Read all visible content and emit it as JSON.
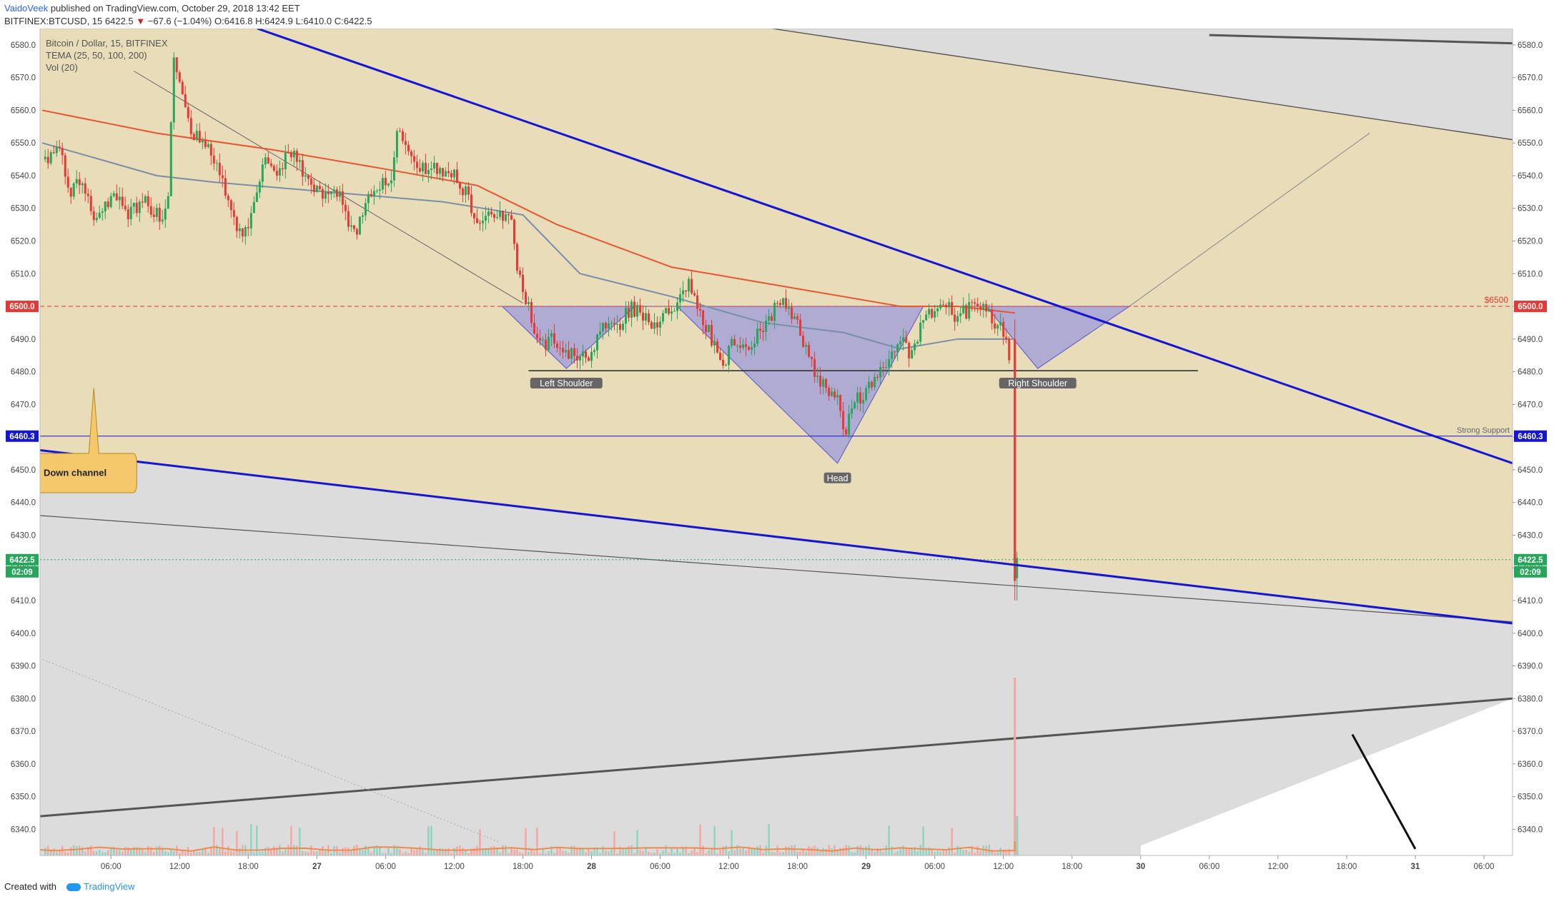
{
  "header": {
    "author": "VaidoVeek",
    "published": "published on TradingView.com, October 29, 2018 13:42 EET",
    "symbol": "BITFINEX:BTCUSD, 15",
    "last": "6422.5",
    "change_arrow": "▼",
    "change": "−67.6 (−1.04%)",
    "ohlc": "O:6416.8 H:6424.9 L:6410.0 C:6422.5"
  },
  "legend": {
    "line1": "Bitcoin / Dollar, 15, BITFINEX",
    "line2": "TEMA (25, 50, 100, 200)",
    "line3": "Vol (20)"
  },
  "footer": {
    "created_with": "Created with",
    "brand": "TradingView"
  },
  "chart_data": {
    "type": "candlestick",
    "symbol": "BITFINEX:BTCUSD",
    "interval": "15",
    "colors": {
      "up": "#26a65b",
      "down": "#e53935",
      "channel_line": "#1515d6",
      "tema_slow": "#e8552f",
      "tema_mid": "#7a8ea8"
    },
    "y_ticks": [
      6340,
      6350,
      6360,
      6370,
      6380,
      6390,
      6400,
      6410,
      6420,
      6430,
      6440,
      6450,
      6460,
      6470,
      6480,
      6490,
      6500,
      6510,
      6520,
      6530,
      6540,
      6550,
      6560,
      6570,
      6580
    ],
    "ylim": [
      6332,
      6585
    ],
    "x_ticks": [
      "06:00",
      "12:00",
      "18:00",
      "27",
      "06:00",
      "12:00",
      "18:00",
      "28",
      "06:00",
      "12:00",
      "18:00",
      "29",
      "06:00",
      "12:00",
      "18:00",
      "30",
      "06:00",
      "12:00",
      "18:00",
      "31",
      "06:00"
    ],
    "x_tick_hours": [
      6,
      12,
      18,
      24,
      30,
      36,
      42,
      48,
      54,
      60,
      66,
      72,
      78,
      84,
      90,
      96,
      102,
      108,
      114,
      120,
      126
    ],
    "xlim_hours": [
      -0.2,
      128.5
    ],
    "price_path": [
      [
        0.5,
        6545
      ],
      [
        1.5,
        6548
      ],
      [
        2.5,
        6535
      ],
      [
        3.5,
        6540
      ],
      [
        4.5,
        6525
      ],
      [
        5.5,
        6530
      ],
      [
        6.5,
        6534
      ],
      [
        7.5,
        6528
      ],
      [
        9,
        6532
      ],
      [
        10.5,
        6527
      ],
      [
        11,
        6535
      ],
      [
        11.5,
        6578
      ],
      [
        12.3,
        6562
      ],
      [
        13,
        6552
      ],
      [
        14.5,
        6550
      ],
      [
        15.5,
        6540
      ],
      [
        16.5,
        6530
      ],
      [
        17.5,
        6520
      ],
      [
        18.5,
        6530
      ],
      [
        19.5,
        6545
      ],
      [
        20.5,
        6540
      ],
      [
        21.5,
        6548
      ],
      [
        22.5,
        6543
      ],
      [
        23.5,
        6535
      ],
      [
        24.5,
        6535
      ],
      [
        25.5,
        6538
      ],
      [
        26.5,
        6528
      ],
      [
        27.5,
        6522
      ],
      [
        28.5,
        6535
      ],
      [
        29.5,
        6538
      ],
      [
        30.5,
        6540
      ],
      [
        31,
        6555
      ],
      [
        32,
        6546
      ],
      [
        33,
        6541
      ],
      [
        34,
        6543
      ],
      [
        35,
        6542
      ],
      [
        36,
        6540
      ],
      [
        37,
        6535
      ],
      [
        38,
        6527
      ],
      [
        39,
        6527
      ],
      [
        40,
        6528
      ],
      [
        41,
        6525
      ],
      [
        41.5,
        6512
      ],
      [
        42.5,
        6500
      ],
      [
        43.5,
        6488
      ],
      [
        44.5,
        6490
      ],
      [
        45.5,
        6484
      ],
      [
        46.5,
        6486
      ],
      [
        47.5,
        6483
      ],
      [
        48.5,
        6490
      ],
      [
        49.5,
        6496
      ],
      [
        50.5,
        6495
      ],
      [
        51.5,
        6500
      ],
      [
        52.5,
        6496
      ],
      [
        53.5,
        6495
      ],
      [
        54.5,
        6498
      ],
      [
        55.5,
        6500
      ],
      [
        56.5,
        6508
      ],
      [
        57.5,
        6498
      ],
      [
        58.5,
        6490
      ],
      [
        59.5,
        6482
      ],
      [
        60.5,
        6490
      ],
      [
        61.5,
        6487
      ],
      [
        62.5,
        6492
      ],
      [
        63.5,
        6496
      ],
      [
        64.5,
        6502
      ],
      [
        65.5,
        6497
      ],
      [
        66.5,
        6490
      ],
      [
        67.5,
        6480
      ],
      [
        68.5,
        6475
      ],
      [
        69.5,
        6473
      ],
      [
        70,
        6460
      ],
      [
        71,
        6470
      ],
      [
        72,
        6475
      ],
      [
        73,
        6477
      ],
      [
        74,
        6485
      ],
      [
        75,
        6490
      ],
      [
        76,
        6485
      ],
      [
        77,
        6496
      ],
      [
        78,
        6500
      ],
      [
        79,
        6500
      ],
      [
        80,
        6497
      ],
      [
        81,
        6499
      ],
      [
        82,
        6499
      ],
      [
        83,
        6496
      ],
      [
        84,
        6493
      ],
      [
        84.7,
        6480
      ],
      [
        85,
        6420
      ],
      [
        85.4,
        6423
      ]
    ],
    "tema_slow": [
      [
        0,
        6560
      ],
      [
        10,
        6553
      ],
      [
        20,
        6548
      ],
      [
        30,
        6542
      ],
      [
        38,
        6537
      ],
      [
        45,
        6525
      ],
      [
        55,
        6512
      ],
      [
        65,
        6506
      ],
      [
        75,
        6500
      ],
      [
        80,
        6500
      ],
      [
        85,
        6498
      ]
    ],
    "tema_mid": [
      [
        0,
        6550
      ],
      [
        10,
        6540
      ],
      [
        15,
        6538
      ],
      [
        25,
        6535
      ],
      [
        35,
        6532
      ],
      [
        42,
        6528
      ],
      [
        47,
        6510
      ],
      [
        55,
        6503
      ],
      [
        63,
        6495
      ],
      [
        70,
        6492
      ],
      [
        75,
        6487
      ],
      [
        80,
        6490
      ],
      [
        85,
        6490
      ]
    ],
    "volume_spike": {
      "x": 85,
      "relative_height": 0.8
    },
    "horizontal_levels": [
      {
        "price": 6500.0,
        "label": "$6500",
        "badge": "6500.0",
        "color": "#e53935",
        "style": "dashed"
      },
      {
        "price": 6460.3,
        "label": "Strong Support",
        "badge": "6460.3",
        "color": "#1515d6",
        "style": "solid"
      },
      {
        "price": 6422.5,
        "badge": "6422.5",
        "timer": "02:09",
        "color": "#26a65b",
        "style": "dotted"
      },
      {
        "price": 6480.3,
        "color": "#333333",
        "style": "solid",
        "from_hour": 42.5,
        "to_hour": 101
      }
    ],
    "channel": {
      "upper": [
        [
          18.8,
          6585
        ],
        [
          128.5,
          6452
        ]
      ],
      "lower": [
        [
          -0.2,
          6456
        ],
        [
          128.5,
          6403
        ]
      ]
    },
    "pattern": {
      "name": "Inverse Head and Shoulders",
      "polygon": [
        [
          40.2,
          6500
        ],
        [
          45.8,
          6481
        ],
        [
          51.8,
          6500
        ],
        [
          55.5,
          6500
        ],
        [
          69.5,
          6452
        ],
        [
          77,
          6500
        ],
        [
          82.5,
          6500
        ],
        [
          87,
          6481
        ],
        [
          95,
          6500
        ]
      ],
      "labels": [
        {
          "text": "Left Shoulder",
          "x": 45.8,
          "y": 6481
        },
        {
          "text": "Head",
          "x": 69.5,
          "y": 6452
        },
        {
          "text": "Right Shoulder",
          "x": 87,
          "y": 6481
        }
      ]
    },
    "annotation": {
      "text": "Down channel",
      "x": 4.5,
      "y": 6475
    }
  }
}
